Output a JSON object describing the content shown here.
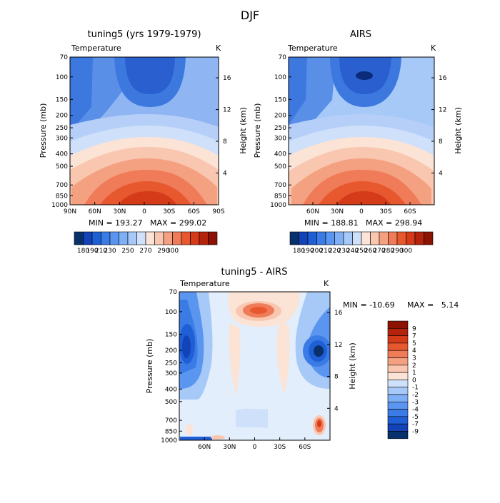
{
  "page_title": "DJF",
  "colors": {
    "axis": "#000000",
    "background": "#ffffff"
  },
  "chart_data": [
    {
      "type": "contour",
      "title": "tuning5 (yrs 1979-1979)",
      "variable_label": "Temperature",
      "units": "K",
      "ylabel": "Pressure (mb)",
      "y2label": "Height (km)",
      "x_ticks": [
        "90N",
        "60N",
        "30N",
        "0",
        "30S",
        "60S",
        "90S"
      ],
      "y_ticks": [
        "70",
        "100",
        "150",
        "200",
        "250",
        "300",
        "400",
        "500",
        "700",
        "850",
        "1000"
      ],
      "y2_ticks": [
        "4",
        "8",
        "12",
        "16"
      ],
      "ylim": [
        1000,
        70
      ],
      "min_label": "MIN = 193.27",
      "max_label": "MAX = 299.02",
      "colorbar": {
        "colors": [
          "#08306b",
          "#1343b8",
          "#1f5fd6",
          "#3a7be6",
          "#5a96ef",
          "#7fb0f5",
          "#a6c9f8",
          "#cfe0fa",
          "#fbe3d6",
          "#f9c6b0",
          "#f4a181",
          "#ef7b58",
          "#e8582f",
          "#d53a19",
          "#b4230c",
          "#8c1304"
        ],
        "labels": [
          "180",
          "190",
          "210",
          "230",
          "250",
          "270",
          "290",
          "300"
        ],
        "label_positions": [
          1,
          2,
          3,
          4,
          6,
          8,
          10,
          11
        ]
      }
    },
    {
      "type": "contour",
      "title": "AIRS",
      "variable_label": "Temperature",
      "units": "K",
      "ylabel": "Pressure (mb)",
      "y2label": "Height (km)",
      "x_ticks": [
        "60N",
        "30N",
        "0",
        "30S",
        "60S"
      ],
      "y_ticks": [
        "70",
        "100",
        "150",
        "200",
        "250",
        "300",
        "400",
        "500",
        "700",
        "850",
        "1000"
      ],
      "y2_ticks": [
        "4",
        "8",
        "12",
        "16"
      ],
      "ylim": [
        1000,
        70
      ],
      "min_label": "MIN = 188.81",
      "max_label": "MAX = 298.94",
      "colorbar": {
        "colors": [
          "#08306b",
          "#1343b8",
          "#1f5fd6",
          "#3a7be6",
          "#5a96ef",
          "#7fb0f5",
          "#a6c9f8",
          "#cfe0fa",
          "#fbe3d6",
          "#f9c6b0",
          "#f4a181",
          "#ef7b58",
          "#e8582f",
          "#d53a19",
          "#b4230c",
          "#8c1304"
        ],
        "labels": [
          "180",
          "190",
          "200",
          "210",
          "220",
          "230",
          "240",
          "250",
          "260",
          "270",
          "280",
          "290",
          "300"
        ],
        "label_positions": [
          1,
          2,
          3,
          4,
          5,
          6,
          7,
          8,
          9,
          10,
          11,
          12,
          13
        ]
      }
    },
    {
      "type": "contour",
      "title": "tuning5 - AIRS",
      "variable_label": "Temperature",
      "units": "K",
      "ylabel": "Pressure (mb)",
      "y2label": "Height (km)",
      "x_ticks": [
        "60N",
        "30N",
        "0",
        "30S",
        "60S"
      ],
      "y_ticks": [
        "70",
        "100",
        "150",
        "200",
        "250",
        "300",
        "400",
        "500",
        "700",
        "850",
        "1000"
      ],
      "y2_ticks": [
        "4",
        "8",
        "12",
        "16"
      ],
      "ylim": [
        1000,
        70
      ],
      "min_label": "MIN = -10.69",
      "max_label": "MAX =   5.14",
      "colorbar": {
        "labels_top_to_bottom": [
          "9",
          "7",
          "5",
          "4",
          "3",
          "2",
          "1",
          "0",
          "-1",
          "-2",
          "-3",
          "-4",
          "-5",
          "-7",
          "-9"
        ],
        "colors_top_to_bottom": [
          "#8c1304",
          "#b4230c",
          "#d53a19",
          "#e8582f",
          "#ef7b58",
          "#f4a181",
          "#f9c6b0",
          "#fbe3d6",
          "#cfe0fa",
          "#a6c9f8",
          "#7fb0f5",
          "#5a96ef",
          "#3a7be6",
          "#1f5fd6",
          "#1343b8",
          "#08306b"
        ]
      }
    }
  ]
}
